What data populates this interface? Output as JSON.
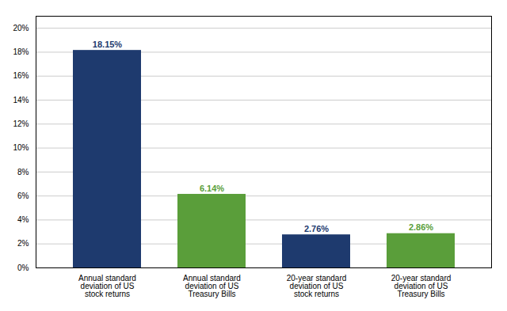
{
  "chart_data": {
    "type": "bar",
    "categories": [
      "Annual standard\ndeviation of US\nstock returns",
      "Annual standard\ndeviation of US\nTreasury Bills",
      "20-year standard\ndeviation of US\nstock returns",
      "20-year standard\ndeviation of US\nTreasury Bills"
    ],
    "values": [
      18.15,
      6.14,
      2.76,
      2.86
    ],
    "value_labels": [
      "18.15%",
      "6.14%",
      "2.76%",
      "2.86%"
    ],
    "colors": [
      "#1e3a6e",
      "#5a9e3a",
      "#1e3a6e",
      "#5a9e3a"
    ],
    "ylim": [
      0,
      21
    ],
    "yticks": [
      {
        "value": 0,
        "label": "0%"
      },
      {
        "value": 2,
        "label": "2%"
      },
      {
        "value": 4,
        "label": "4%"
      },
      {
        "value": 6,
        "label": "6%"
      },
      {
        "value": 8,
        "label": "8%"
      },
      {
        "value": 10,
        "label": "10%"
      },
      {
        "value": 12,
        "label": "12%"
      },
      {
        "value": 14,
        "label": "14%"
      },
      {
        "value": 16,
        "label": "16%"
      },
      {
        "value": 18,
        "label": "18%"
      },
      {
        "value": 20,
        "label": "20%"
      }
    ],
    "grid": true,
    "data_labels": true
  }
}
